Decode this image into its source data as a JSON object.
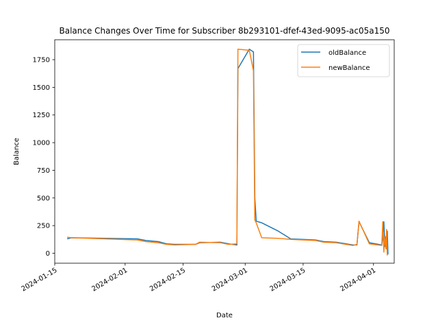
{
  "chart_data": {
    "type": "line",
    "title": "Balance Changes Over Time for Subscriber 8b293101-dfef-43ed-9095-ac05a150",
    "xlabel": "Date",
    "ylabel": "Balance",
    "xlim": [
      "2024-01-15",
      "2024-04-06"
    ],
    "ylim": [
      -90,
      1930
    ],
    "x_ticks": [
      "2024-01-15",
      "2024-02-01",
      "2024-02-15",
      "2024-03-01",
      "2024-03-15",
      "2024-04-01"
    ],
    "y_ticks": [
      0,
      250,
      500,
      750,
      1000,
      1250,
      1500,
      1750
    ],
    "legend_position": "upper right",
    "grid": false,
    "series": [
      {
        "name": "oldBalance",
        "color": "#1f77b4",
        "points": [
          [
            "2024-01-18",
            130
          ],
          [
            "2024-01-19",
            140
          ],
          [
            "2024-02-04",
            130
          ],
          [
            "2024-02-06",
            115
          ],
          [
            "2024-02-09",
            105
          ],
          [
            "2024-02-11",
            85
          ],
          [
            "2024-02-13",
            80
          ],
          [
            "2024-02-18",
            80
          ],
          [
            "2024-02-19",
            95
          ],
          [
            "2024-02-24",
            100
          ],
          [
            "2024-02-26",
            85
          ],
          [
            "2024-02-28",
            75
          ],
          [
            "2024-02-28 06:00",
            1670
          ],
          [
            "2024-03-02",
            1845
          ],
          [
            "2024-03-03",
            1820
          ],
          [
            "2024-03-03 08:00",
            500
          ],
          [
            "2024-03-03 16:00",
            290
          ],
          [
            "2024-03-05",
            275
          ],
          [
            "2024-03-09",
            200
          ],
          [
            "2024-03-12",
            130
          ],
          [
            "2024-03-18",
            120
          ],
          [
            "2024-03-20",
            105
          ],
          [
            "2024-03-23",
            100
          ],
          [
            "2024-03-27",
            75
          ],
          [
            "2024-03-28",
            75
          ],
          [
            "2024-03-28 12:00",
            285
          ],
          [
            "2024-03-31",
            95
          ],
          [
            "2024-04-03",
            75
          ],
          [
            "2024-04-03 06:00",
            150
          ],
          [
            "2024-04-03 12:00",
            285
          ],
          [
            "2024-04-03 18:00",
            60
          ],
          [
            "2024-04-04",
            150
          ],
          [
            "2024-04-04 04:00",
            40
          ],
          [
            "2024-04-04 08:00",
            200
          ],
          [
            "2024-04-04 12:00",
            -10
          ]
        ]
      },
      {
        "name": "newBalance",
        "color": "#ff7f0e",
        "points": [
          [
            "2024-01-18",
            145
          ],
          [
            "2024-01-19",
            140
          ],
          [
            "2024-02-04",
            120
          ],
          [
            "2024-02-06",
            105
          ],
          [
            "2024-02-09",
            95
          ],
          [
            "2024-02-11",
            80
          ],
          [
            "2024-02-13",
            75
          ],
          [
            "2024-02-18",
            80
          ],
          [
            "2024-02-19",
            100
          ],
          [
            "2024-02-24",
            95
          ],
          [
            "2024-02-26",
            80
          ],
          [
            "2024-02-28",
            85
          ],
          [
            "2024-02-28 06:00",
            1845
          ],
          [
            "2024-03-02",
            1835
          ],
          [
            "2024-03-03",
            1650
          ],
          [
            "2024-03-03 08:00",
            300
          ],
          [
            "2024-03-03 16:00",
            275
          ],
          [
            "2024-03-05",
            140
          ],
          [
            "2024-03-09",
            135
          ],
          [
            "2024-03-12",
            125
          ],
          [
            "2024-03-18",
            115
          ],
          [
            "2024-03-20",
            100
          ],
          [
            "2024-03-23",
            95
          ],
          [
            "2024-03-27",
            70
          ],
          [
            "2024-03-28",
            80
          ],
          [
            "2024-03-28 12:00",
            290
          ],
          [
            "2024-03-31",
            85
          ],
          [
            "2024-04-03",
            70
          ],
          [
            "2024-04-03 06:00",
            285
          ],
          [
            "2024-04-03 12:00",
            10
          ],
          [
            "2024-04-03 18:00",
            150
          ],
          [
            "2024-04-04",
            40
          ],
          [
            "2024-04-04 04:00",
            215
          ],
          [
            "2024-04-04 08:00",
            -20
          ]
        ]
      }
    ]
  }
}
